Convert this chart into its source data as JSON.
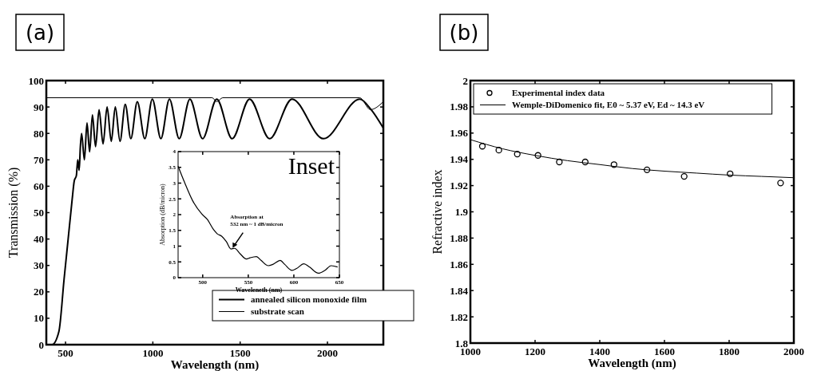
{
  "chart_data": [
    {
      "type": "line",
      "title": "(a)",
      "xlabel": "Wavelength (nm)",
      "ylabel": "Transmission (%)",
      "xlim": [
        390,
        2320
      ],
      "ylim": [
        0,
        100
      ],
      "xticks": [
        500,
        1000,
        1500,
        2000
      ],
      "yticks": [
        0,
        10,
        20,
        30,
        40,
        50,
        60,
        70,
        80,
        90,
        100
      ],
      "legend": "bottom right",
      "line_style": "solid",
      "series": [
        {
          "name": "annealed silicon monoxide film",
          "color": "#000000",
          "x": [
            390,
            423,
            462,
            492,
            515,
            538,
            550,
            562,
            570,
            578,
            585,
            592,
            608,
            623,
            638,
            654,
            672,
            692,
            715,
            738,
            762,
            785,
            812,
            842,
            874,
            911,
            954,
            997,
            1046,
            1095,
            1151,
            1212,
            1285,
            1366,
            1454,
            1554,
            1669,
            1797,
            1977,
            2185,
            2250,
            2320
          ],
          "values": [
            0,
            0,
            5,
            25,
            40,
            55,
            62,
            64,
            70,
            66,
            75,
            80,
            70,
            84,
            73,
            87,
            75,
            89,
            76,
            90,
            77,
            90,
            77,
            91,
            78,
            92,
            78,
            93,
            78,
            93,
            78,
            93,
            78,
            93,
            78,
            93,
            78,
            93,
            78,
            93,
            89,
            82
          ]
        },
        {
          "name": "substrate scan",
          "color": "#000000",
          "x": [
            390,
            1340,
            1366,
            1400,
            2185,
            2246,
            2320
          ],
          "values": [
            93.5,
            93.5,
            92,
            93.5,
            93.5,
            89,
            92
          ]
        }
      ]
    },
    {
      "type": "line",
      "title": "Inset",
      "xlabel": "Waveleneth (nm)",
      "ylabel": "Absorption (dB/micron)",
      "xlim": [
        473,
        650
      ],
      "ylim": [
        0,
        4
      ],
      "xticks": [
        500,
        550,
        600,
        650
      ],
      "yticks": [
        0,
        0.5,
        1,
        1.5,
        2,
        2.5,
        3,
        3.5,
        4
      ],
      "line_style": "solid",
      "annotations": [
        {
          "text": "Absorption at\n532 nm ~ 1 dB/micron",
          "x": 532,
          "y": 0.92
        }
      ],
      "series": [
        {
          "color": "#000000",
          "x": [
            473,
            480,
            489,
            499,
            505,
            512,
            516,
            521,
            526,
            531,
            535,
            541,
            548,
            552,
            559,
            564,
            572,
            577,
            585,
            590,
            598,
            603,
            611,
            617,
            627,
            634,
            641,
            648
          ],
          "values": [
            3.54,
            3.03,
            2.44,
            2.02,
            1.85,
            1.52,
            1.39,
            1.31,
            1.14,
            0.91,
            0.93,
            0.76,
            0.59,
            0.63,
            0.67,
            0.55,
            0.38,
            0.42,
            0.55,
            0.42,
            0.23,
            0.29,
            0.44,
            0.34,
            0.14,
            0.23,
            0.38,
            0.34
          ]
        }
      ]
    },
    {
      "type": "line",
      "title": "(b)",
      "xlabel": "Wavelength (nm)",
      "ylabel": "Refractive index",
      "xlim": [
        1000,
        2000
      ],
      "ylim": [
        1.8,
        2
      ],
      "xticks": [
        1000,
        1200,
        1400,
        1600,
        1800,
        2000
      ],
      "yticks": [
        1.8,
        1.82,
        1.84,
        1.86,
        1.88,
        1.9,
        1.92,
        1.94,
        1.96,
        1.98,
        2
      ],
      "legend": "top left",
      "series": [
        {
          "name": "Experimental index data",
          "type": "scatter",
          "marker": "circle",
          "color": "#000000",
          "x": [
            1037,
            1088,
            1145,
            1209,
            1275,
            1355,
            1444,
            1546,
            1661,
            1803,
            1959
          ],
          "values": [
            1.95,
            1.947,
            1.944,
            1.943,
            1.938,
            1.938,
            1.936,
            1.932,
            1.927,
            1.929,
            1.922
          ]
        },
        {
          "name": "Wemple-DiDomenico fit, E0 ~ 5.37 eV, Ed ~ 14.3 eV",
          "color": "#000000",
          "x": [
            1000,
            1100,
            1200,
            1300,
            1400,
            1500,
            1600,
            1700,
            1800,
            1900,
            2000
          ],
          "values": [
            1.955,
            1.948,
            1.943,
            1.939,
            1.936,
            1.933,
            1.931,
            1.9295,
            1.928,
            1.927,
            1.926
          ]
        }
      ]
    }
  ]
}
